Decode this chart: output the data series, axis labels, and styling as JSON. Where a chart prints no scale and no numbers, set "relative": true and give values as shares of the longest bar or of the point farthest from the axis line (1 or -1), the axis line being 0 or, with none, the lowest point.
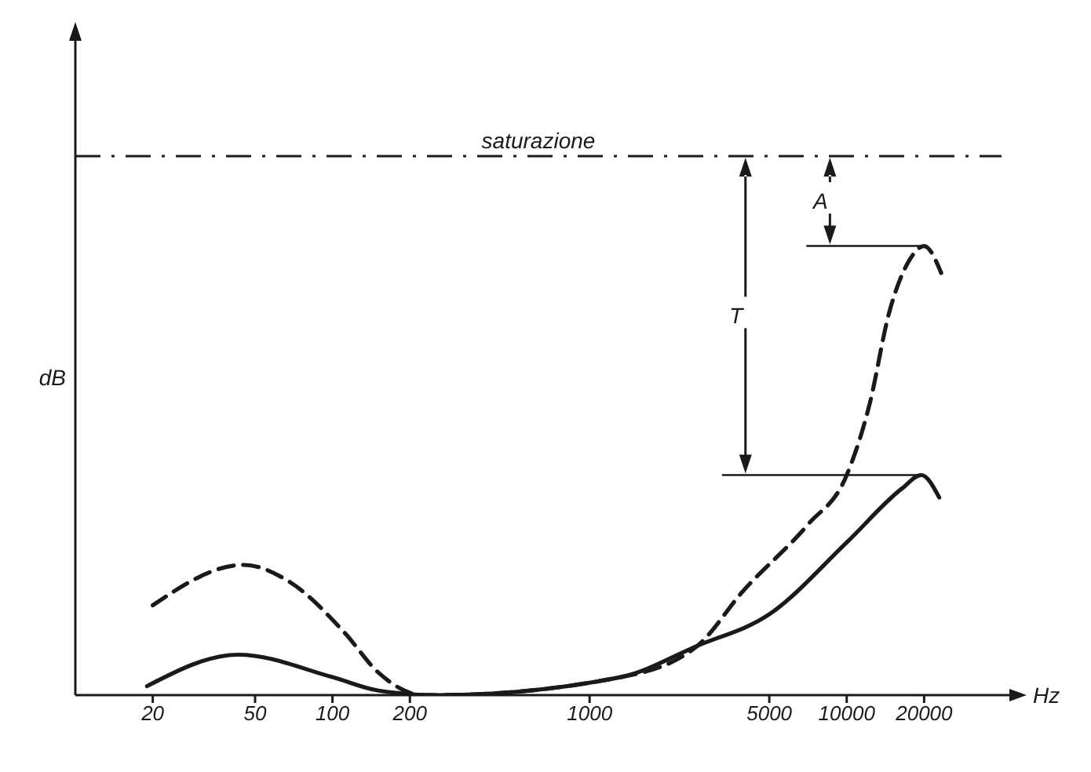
{
  "chart_data": {
    "type": "line",
    "relative": true,
    "xlabel": "Hz",
    "ylabel": "dB",
    "log": "x",
    "xlim": [
      10,
      40000
    ],
    "xticks": [
      20,
      50,
      100,
      200,
      1000,
      5000,
      10000,
      20000
    ],
    "grid": false,
    "legend": false,
    "marker": "none",
    "series": [
      {
        "color": "#1a1a1a",
        "line_style": "solid",
        "x": [
          19,
          43,
          100,
          151,
          257,
          1320,
          2630,
          5000,
          10000,
          16400,
          19500,
          22900
        ],
        "values": [
          0.02,
          0.09,
          0.04,
          0.01,
          0,
          0.04,
          0.11,
          0.18,
          0.34,
          0.46,
          0.49,
          0.44
        ]
      },
      {
        "color": "#1a1a1a",
        "line_style": "dashed",
        "x": [
          20,
          45,
          69,
          111,
          151,
          225,
          257,
          1320,
          2630,
          3930,
          7070,
          10000,
          12300,
          14600,
          17600,
          20000,
          23300
        ],
        "values": [
          0.2,
          0.29,
          0.25,
          0.14,
          0.05,
          0,
          0,
          0.04,
          0.11,
          0.23,
          0.38,
          0.49,
          0.65,
          0.85,
          0.97,
          1,
          0.94
        ]
      }
    ],
    "ref_lines": [
      {
        "axis": "y",
        "value": 1.2,
        "label": "saturazione",
        "color": "#1a1a1a",
        "line_style": "dashdot"
      }
    ],
    "annotations": [
      "T",
      "A"
    ]
  }
}
